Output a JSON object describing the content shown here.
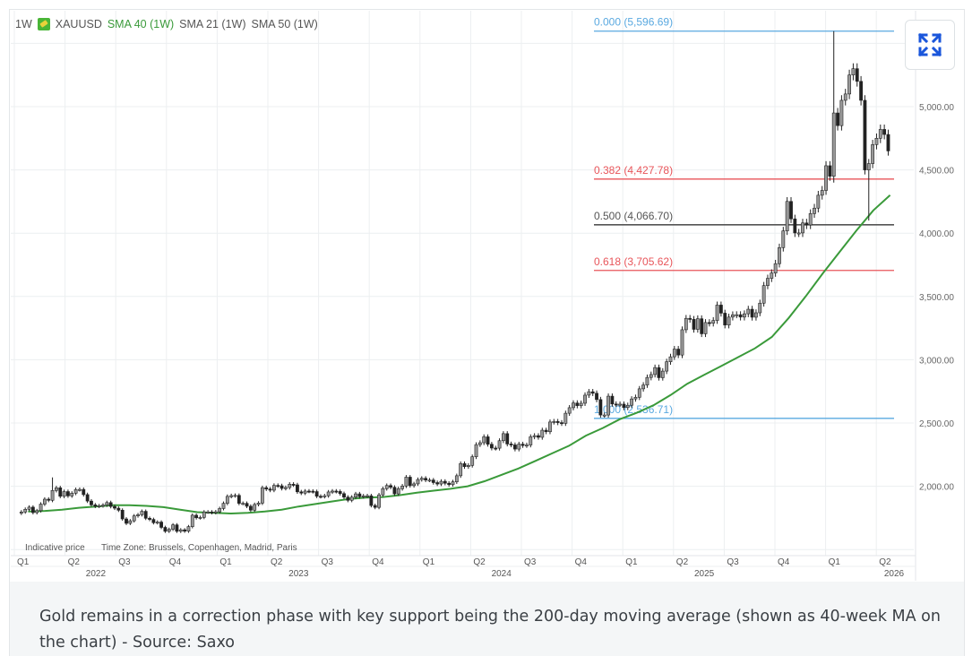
{
  "legend": {
    "interval": "1W",
    "symbol": "XAUUSD",
    "sma40": "SMA 40 (1W)",
    "sma21": "SMA 21 (1W)",
    "sma50": "SMA 50 (1W)"
  },
  "footer_note": {
    "indicative": "Indicative price",
    "timezone": "Time Zone: Brussels, Copenhagen, Madrid, Paris"
  },
  "caption": "Gold remains in a correction phase with key support being the 200-day moving average (shown as 40-week MA on the chart) - Source: Saxo",
  "expand_icon": "expand-arrows-icon",
  "colors": {
    "sma40": "#3a9a3a",
    "fib_blue": "#5aa9e0",
    "fib_red": "#e8555a",
    "fib_gray": "#555555",
    "expand": "#1a56db"
  },
  "chart_data": {
    "type": "candlestick",
    "interval": "1W",
    "start_week": "2022-01-03",
    "ylim": [
      1400,
      5900
    ],
    "y_ticks": [
      2000,
      2500,
      3000,
      3500,
      4000,
      4500,
      5000
    ],
    "y_tick_labels": [
      "2,000.00",
      "2,500.00",
      "3,000.00",
      "3,500.00",
      "4,000.00",
      "4,500.00",
      "5,000.00"
    ],
    "x_quarter_labels": [
      "Q1",
      "Q2",
      "Q3",
      "Q4",
      "Q1",
      "Q2",
      "Q3",
      "Q4",
      "Q1",
      "Q2",
      "Q3",
      "Q4",
      "Q1",
      "Q2",
      "Q3",
      "Q4",
      "Q1",
      "Q2"
    ],
    "x_year_labels": [
      "2022",
      "2023",
      "2024",
      "2025",
      "2026"
    ],
    "grid": true,
    "weekly_close": [
      1797,
      1818,
      1835,
      1792,
      1807,
      1859,
      1898,
      1889,
      1967,
      1988,
      1921,
      1958,
      1924,
      1945,
      1974,
      1975,
      1934,
      1883,
      1853,
      1842,
      1846,
      1851,
      1871,
      1840,
      1827,
      1811,
      1742,
      1707,
      1727,
      1766,
      1775,
      1802,
      1747,
      1738,
      1712,
      1717,
      1675,
      1644,
      1660,
      1695,
      1644,
      1656,
      1645,
      1681,
      1771,
      1751,
      1754,
      1797,
      1797,
      1792,
      1798,
      1824,
      1865,
      1920,
      1926,
      1928,
      1865,
      1865,
      1842,
      1811,
      1856,
      1867,
      1989,
      1978,
      1969,
      2007,
      2004,
      1983,
      1990,
      2016,
      2011,
      1956,
      1946,
      1962,
      1961,
      1958,
      1921,
      1919,
      1925,
      1955,
      1962,
      1959,
      1942,
      1914,
      1889,
      1914,
      1940,
      1918,
      1924,
      1925,
      1848,
      1833,
      1932,
      1981,
      2006,
      1992,
      1940,
      1981,
      2002,
      2072,
      2005,
      2019,
      2053,
      2063,
      2049,
      2049,
      2029,
      2018,
      2039,
      2024,
      2013,
      2035,
      2083,
      2179,
      2155,
      2165,
      2233,
      2329,
      2344,
      2391,
      2332,
      2302,
      2301,
      2360,
      2416,
      2334,
      2327,
      2294,
      2333,
      2322,
      2326,
      2391,
      2400,
      2387,
      2443,
      2431,
      2508,
      2512,
      2503,
      2497,
      2577,
      2621,
      2658,
      2637,
      2656,
      2720,
      2747,
      2735,
      2685,
      2563,
      2563,
      2712,
      2650,
      2648,
      2649,
      2622,
      2640,
      2690,
      2703,
      2770,
      2800,
      2860,
      2883,
      2938,
      2858,
      2910,
      2984,
      3023,
      3084,
      3037,
      3237,
      3327,
      3319,
      3240,
      3324,
      3205,
      3294,
      3289,
      3310,
      3432,
      3368,
      3274,
      3337,
      3355,
      3356,
      3337,
      3363,
      3399,
      3336,
      3371,
      3447,
      3586,
      3643,
      3685,
      3759,
      3886,
      4018,
      4251,
      4113,
      4002,
      4002,
      4081,
      4065,
      4155,
      4198,
      4300,
      4338,
      4533,
      4450,
      4950,
      4850,
      5050,
      5100,
      5250,
      5300,
      5200,
      5050,
      4500,
      4550,
      4700,
      4750,
      4820,
      4780,
      4650
    ],
    "notable_extremes": [
      {
        "week": 8,
        "high": 2070
      },
      {
        "week": 209,
        "high": 5596.69,
        "low": 4400
      },
      {
        "week": 218,
        "low": 4100
      }
    ],
    "sma40_monthly": [
      1800,
      1805,
      1815,
      1830,
      1840,
      1850,
      1850,
      1845,
      1835,
      1815,
      1795,
      1790,
      1785,
      1790,
      1800,
      1815,
      1840,
      1860,
      1880,
      1900,
      1910,
      1915,
      1930,
      1950,
      1965,
      1980,
      2000,
      2040,
      2090,
      2140,
      2200,
      2260,
      2320,
      2400,
      2460,
      2530,
      2580,
      2640,
      2720,
      2810,
      2880,
      2950,
      3020,
      3090,
      3180,
      3330,
      3500,
      3680,
      3850,
      4020,
      4180,
      4300
    ],
    "fibonacci": [
      {
        "level": "0.000",
        "value": 5596.69,
        "label": "0.000 (5,596.69)",
        "color": "#5aa9e0"
      },
      {
        "level": "0.382",
        "value": 4427.78,
        "label": "0.382 (4,427.78)",
        "color": "#e8555a"
      },
      {
        "level": "0.500",
        "value": 4066.7,
        "label": "0.500 (4,066.70)",
        "color": "#555555"
      },
      {
        "level": "0.618",
        "value": 3705.62,
        "label": "0.618 (3,705.62)",
        "color": "#e8555a"
      },
      {
        "level": "1.000",
        "value": 2536.71,
        "label": "1.000 (2,536.71)",
        "color": "#5aa9e0"
      }
    ]
  }
}
